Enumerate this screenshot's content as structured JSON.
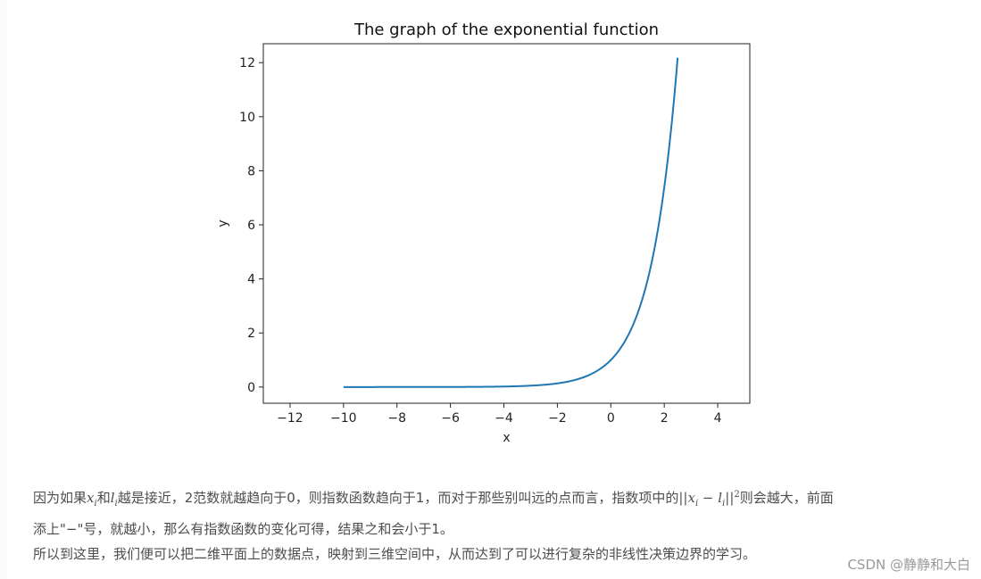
{
  "chart_data": {
    "type": "line",
    "title": "The graph of the exponential function",
    "xlabel": "x",
    "ylabel": "y",
    "xlim": [
      -13,
      5.2
    ],
    "ylim": [
      -0.6,
      12.7
    ],
    "xticks": [
      -12,
      -10,
      -8,
      -6,
      -4,
      -2,
      0,
      2,
      4
    ],
    "yticks": [
      0,
      2,
      4,
      6,
      8,
      10,
      12
    ],
    "xtick_labels": [
      "−12",
      "−10",
      "−8",
      "−6",
      "−4",
      "−2",
      "0",
      "2",
      "4"
    ],
    "ytick_labels": [
      "0",
      "2",
      "4",
      "6",
      "8",
      "10",
      "12"
    ],
    "grid": false,
    "series": [
      {
        "color": "#1f77b4",
        "function": "exp",
        "x": [
          -10,
          -8,
          -6,
          -4,
          -3,
          -2,
          -1.5,
          -1,
          -0.5,
          0,
          0.5,
          1,
          1.5,
          2,
          2.5
        ],
        "y": [
          4.54e-05,
          0.000335,
          0.00248,
          0.0183,
          0.0498,
          0.135,
          0.223,
          0.368,
          0.607,
          1.0,
          1.649,
          2.718,
          4.482,
          7.389,
          12.182
        ]
      }
    ]
  },
  "article": {
    "p1_a": "因为如果",
    "p1_xi_base": "x",
    "p1_xi_sub": "i",
    "p1_b": "和",
    "p1_li_base": "l",
    "p1_li_sub": "i",
    "p1_c": "越是接近，2范数就越趋向于0，则指数函数趋向于1，而对于那些别叫远的点而言，指数项中的",
    "p1_norm_open": "||",
    "p1_norm_x": "x",
    "p1_norm_xsub": "i",
    "p1_norm_minus": " − ",
    "p1_norm_l": "l",
    "p1_norm_lsub": "i",
    "p1_norm_close": "||",
    "p1_norm_sup": "2",
    "p1_d": "则会越大，前面",
    "p2": "添上\"−\"号，就越小，那么有指数函数的变化可得，结果之和会小于1。",
    "p3": "所以到这里，我们便可以把二维平面上的数据点，映射到三维空间中，从而达到了可以进行复杂的非线性决策边界的学习。"
  },
  "watermark": "CSDN @静静和大白"
}
